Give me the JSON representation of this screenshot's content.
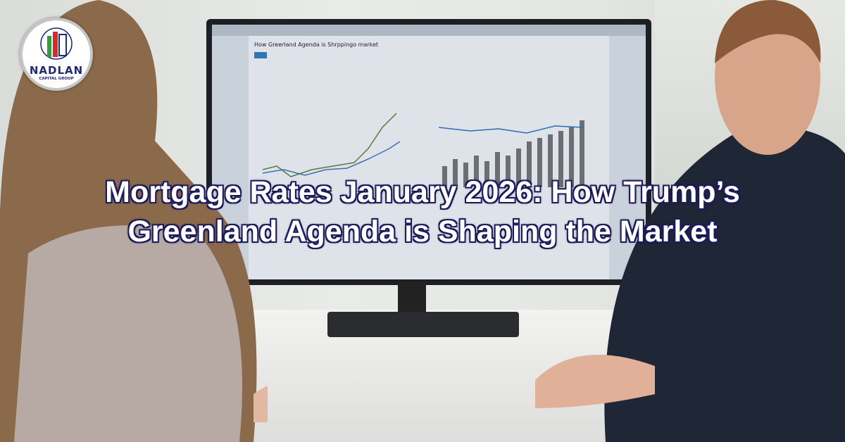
{
  "logo": {
    "name": "NADLAN",
    "subtitle": "CAPITAL GROUP",
    "colors": [
      "#2e9e3f",
      "#d62b2b",
      "#1f2a7a"
    ]
  },
  "headline": {
    "line1": "Mortgage Rates January 2026: How Trump’s",
    "line2": "Greenland Agenda is Shaping the Market",
    "text_color": "#ffffff",
    "outline_color": "#1d1a5c"
  },
  "monitor": {
    "page_title": "How Greerland Agenda is Shrppingo market"
  }
}
